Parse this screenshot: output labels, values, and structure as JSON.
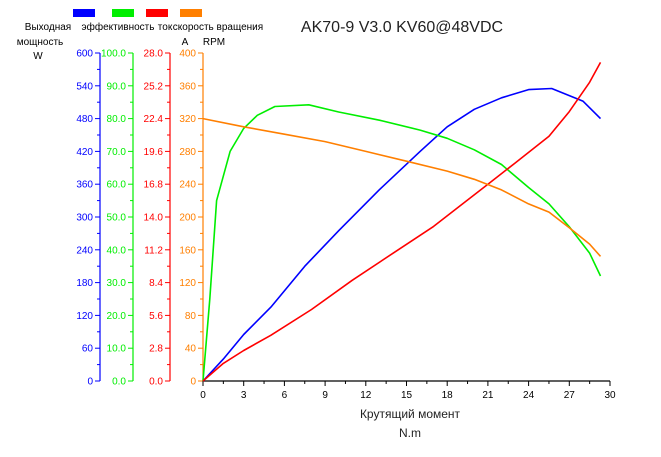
{
  "chart_data": {
    "type": "line",
    "title": "AK70-9 V3.0 KV60@48VDC",
    "xlabel": "Крутящий момент",
    "xunit": "N.m",
    "xlim": [
      0,
      30
    ],
    "xticks": [
      0,
      3,
      6,
      9,
      12,
      15,
      18,
      21,
      24,
      27,
      30
    ],
    "grid": false,
    "legend_position": "top-left",
    "axes": [
      {
        "id": "power",
        "color": "#0000ff",
        "label": "Выходная мощность",
        "unit": "W",
        "ylim": [
          0,
          600
        ],
        "ticks": [
          "0",
          "60",
          "120",
          "180",
          "240",
          "300",
          "360",
          "420",
          "480",
          "540",
          "600"
        ]
      },
      {
        "id": "eff",
        "color": "#00ee00",
        "label": "эффективность",
        "unit": "",
        "ylim": [
          0,
          100
        ],
        "ticks": [
          "0.0",
          "10.0",
          "20.0",
          "30.0",
          "40.0",
          "50.0",
          "60.0",
          "70.0",
          "80.0",
          "90.0",
          "100.0"
        ]
      },
      {
        "id": "current",
        "color": "#ff0000",
        "label": "ток",
        "unit": "A",
        "ylim": [
          0,
          28
        ],
        "ticks": [
          "0.0",
          "2.8",
          "5.6",
          "8.4",
          "11.2",
          "14.0",
          "16.8",
          "19.6",
          "22.4",
          "25.2",
          "28.0"
        ]
      },
      {
        "id": "speed",
        "color": "#ff7f00",
        "label": "скорость вращения",
        "unit": "RPM",
        "ylim": [
          0,
          400
        ],
        "ticks": [
          "0",
          "40",
          "80",
          "120",
          "160",
          "200",
          "240",
          "280",
          "320",
          "360",
          "400"
        ]
      }
    ],
    "series": [
      {
        "name": "Выходная мощность",
        "axis": "power",
        "color": "#0000ff",
        "x": [
          0,
          1.5,
          3,
          5,
          7.5,
          10,
          13,
          16,
          18,
          20,
          22,
          24,
          25.7,
          28,
          29.3
        ],
        "y": [
          0,
          40,
          85,
          135,
          210,
          275,
          350,
          420,
          465,
          497,
          518,
          533,
          535,
          512,
          480
        ]
      },
      {
        "name": "эффективность",
        "axis": "eff",
        "color": "#00ee00",
        "x": [
          0,
          0.5,
          1,
          2,
          3,
          4,
          5.3,
          7.8,
          10,
          13,
          16,
          18,
          20,
          22,
          24,
          25.5,
          27,
          28.5,
          29.3
        ],
        "y": [
          0,
          25,
          55,
          70,
          77,
          81,
          83.7,
          84.2,
          82,
          79.5,
          76.5,
          74,
          70.5,
          66,
          59,
          54,
          47,
          39,
          32
        ]
      },
      {
        "name": "ток",
        "axis": "current",
        "color": "#ff0000",
        "x": [
          0,
          1.5,
          3,
          5,
          8,
          11,
          14,
          17,
          19,
          21,
          23,
          25.5,
          27,
          28.5,
          29.3
        ],
        "y": [
          0,
          1.5,
          2.6,
          3.9,
          6.1,
          8.6,
          10.9,
          13.2,
          15.0,
          16.8,
          18.6,
          20.9,
          23.0,
          25.5,
          27.2
        ]
      },
      {
        "name": "скорость вращения",
        "axis": "speed",
        "color": "#ff7f00",
        "x": [
          0,
          3,
          6,
          9,
          12,
          15,
          18,
          20,
          22,
          24,
          25.5,
          27,
          28.5,
          29.3
        ],
        "y": [
          320,
          310,
          301,
          292,
          280,
          268,
          256,
          246,
          233,
          216,
          206,
          187,
          167,
          152
        ]
      }
    ]
  }
}
